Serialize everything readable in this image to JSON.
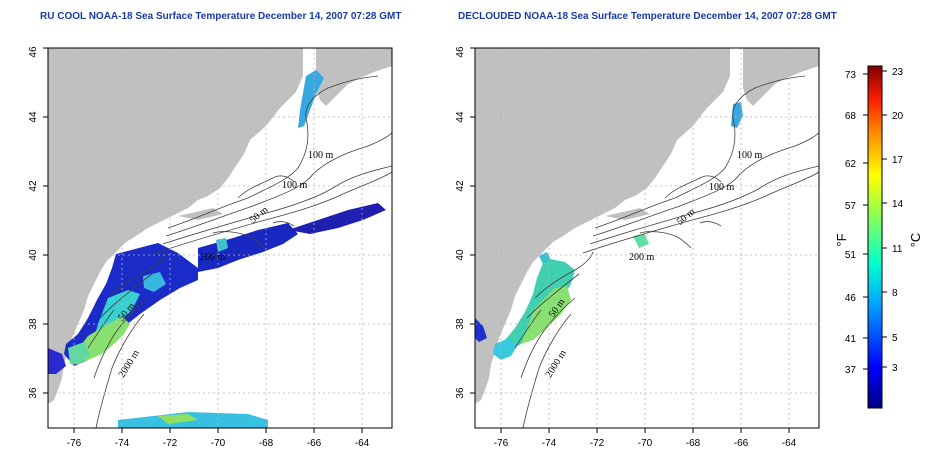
{
  "maps": [
    {
      "title": "RU COOL NOAA-18 Sea Surface Temperature December 14, 2007 07:28 GMT",
      "x_ticks": [
        "-76",
        "-74",
        "-72",
        "-70",
        "-68",
        "-66",
        "-64"
      ],
      "y_ticks": [
        "36",
        "38",
        "40",
        "42",
        "44",
        "46"
      ],
      "contour_labels": [
        "100 m",
        "100 m",
        "50 m",
        "200 m",
        "50 m",
        "2000 m"
      ]
    },
    {
      "title": "DECLOUDED NOAA-18 Sea Surface Temperature December 14, 2007 07:28 GMT",
      "x_ticks": [
        "-76",
        "-74",
        "-72",
        "-70",
        "-68",
        "-66",
        "-64"
      ],
      "y_ticks": [
        "36",
        "38",
        "40",
        "42",
        "44",
        "46"
      ],
      "contour_labels": [
        "100 m",
        "100 m",
        "50 m",
        "200 m",
        "50 m",
        "2000 m"
      ]
    }
  ],
  "colorbar": {
    "fahrenheit_ticks": [
      "73",
      "68",
      "62",
      "57",
      "51",
      "46",
      "41",
      "37"
    ],
    "celsius_ticks": [
      "23",
      "20",
      "17",
      "14",
      "11",
      "8",
      "5",
      "3"
    ],
    "fahrenheit_unit": "°F",
    "celsius_unit": "°C"
  },
  "colors": {
    "land": "#c0c0c0",
    "ocean": "#ffffff",
    "title": "#1a3aa8",
    "grid": "#b4b4b4",
    "cold": "#1a2bc8",
    "mid": "#38d0d0",
    "warm": "#90e060"
  }
}
